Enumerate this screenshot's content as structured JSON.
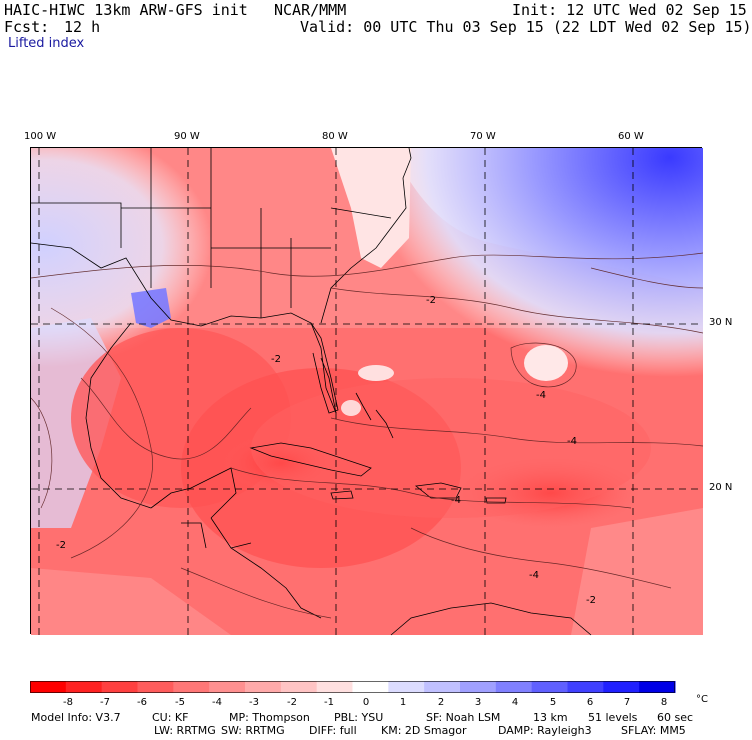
{
  "header": {
    "model": "HAIC-HIWC 13km ARW-GFS init",
    "org": "NCAR/MMM",
    "init": "Init: 12 UTC Wed 02 Sep 15",
    "fcst_label": "Fcst:",
    "fcst_value": "12 h",
    "valid": "Valid: 00 UTC Thu 03 Sep 15 (22 LDT Wed 02 Sep 15)",
    "field": "Lifted index"
  },
  "map": {
    "lon_labels": [
      "100 W",
      "90 W",
      "80 W",
      "70 W",
      "60 W"
    ],
    "lat_labels": [
      "30 N",
      "20 N"
    ],
    "contour_labels": [
      "-2",
      "-4",
      "-2",
      "-4",
      "-2",
      "-4",
      "-4",
      "-2"
    ]
  },
  "colorbar": {
    "ticks": [
      "-8",
      "-7",
      "-6",
      "-5",
      "-4",
      "-3",
      "-2",
      "-1",
      "0",
      "1",
      "2",
      "3",
      "4",
      "5",
      "6",
      "7",
      "8"
    ],
    "unit": "°C",
    "colors": [
      "#ff0000",
      "#ff2222",
      "#ff4040",
      "#ff5c5c",
      "#ff7777",
      "#ff9090",
      "#ffaaaa",
      "#ffc4c4",
      "#ffe0e0",
      "#ffffff",
      "#dcdcff",
      "#c0c0ff",
      "#a0a0ff",
      "#8080ff",
      "#6060ff",
      "#4040ff",
      "#2020ff",
      "#0000e6"
    ]
  },
  "footer": {
    "line1": [
      "Model Info: V3.7",
      "CU: KF",
      "MP: Thompson",
      "PBL: YSU",
      "SF: Noah LSM",
      "13 km",
      "51 levels",
      "60 sec"
    ],
    "line2": [
      "LW: RRTMG",
      "SW: RRTMG",
      "DIFF: full",
      "KM: 2D Smagor",
      "DAMP: Rayleigh3",
      "SFLAY: MM5"
    ]
  }
}
